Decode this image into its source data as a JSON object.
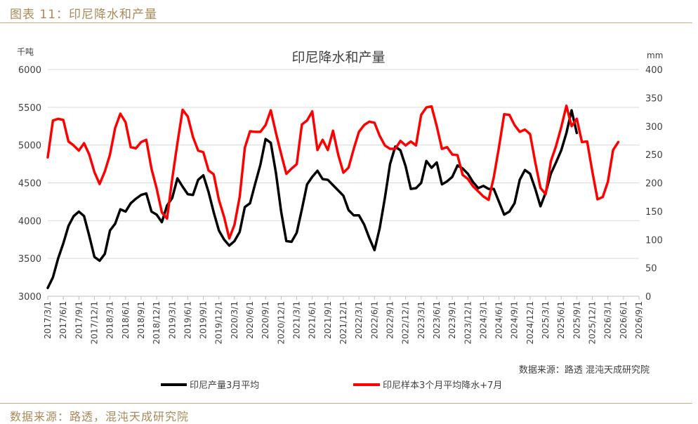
{
  "figure": {
    "title": "图表 11：印尼降水和产量",
    "source": "数据来源：路透，混沌天成研究院"
  },
  "chart_data": {
    "type": "line",
    "title": "印尼降水和产量",
    "left_axis_unit": "千吨",
    "right_axis_unit": "mm",
    "source_note": "数据来源：路透   混沌天成研究院",
    "x_start": "2017/3/1",
    "x_labels": [
      "2017/3/1",
      "2017/6/1",
      "2017/9/1",
      "2017/12/1",
      "2018/3/1",
      "2018/6/1",
      "2018/9/1",
      "2018/12/1",
      "2019/3/1",
      "2019/6/1",
      "2019/9/1",
      "2019/12/1",
      "2020/3/1",
      "2020/6/1",
      "2020/9/1",
      "2020/12/1",
      "2021/3/1",
      "2021/6/1",
      "2021/9/1",
      "2021/12/1",
      "2022/3/1",
      "2022/6/1",
      "2022/9/1",
      "2022/12/1",
      "2023/3/1",
      "2023/6/1",
      "2023/9/1",
      "2023/12/1",
      "2024/3/1",
      "2024/6/1",
      "2024/9/1",
      "2024/12/1",
      "2025/3/1",
      "2025/6/1",
      "2025/9/1",
      "2025/12/1",
      "2026/3/1",
      "2026/6/1",
      "2026/9/1"
    ],
    "ylim_left": [
      3000,
      6000
    ],
    "yticks_left": [
      3000,
      3500,
      4000,
      4500,
      5000,
      5500,
      6000
    ],
    "ylim_right": [
      0,
      400
    ],
    "yticks_right": [
      0,
      50,
      100,
      150,
      200,
      250,
      300,
      350,
      400
    ],
    "legend": [
      "印尼产量3月平均",
      "印尼样本3个月平均降水+7月"
    ],
    "series": [
      {
        "name": "印尼产量3月平均",
        "axis": "left",
        "color": "#000000",
        "start_month_index": 0,
        "values": [
          3110,
          3250,
          3500,
          3700,
          3930,
          4060,
          4120,
          4060,
          3800,
          3520,
          3470,
          3560,
          3870,
          3960,
          4150,
          4120,
          4230,
          4290,
          4340,
          4360,
          4120,
          4080,
          3980,
          4200,
          4300,
          4560,
          4450,
          4350,
          4340,
          4540,
          4600,
          4380,
          4110,
          3870,
          3750,
          3670,
          3730,
          3850,
          4180,
          4230,
          4490,
          4740,
          5080,
          5030,
          4630,
          4120,
          3730,
          3720,
          3840,
          4150,
          4480,
          4580,
          4660,
          4550,
          4540,
          4470,
          4400,
          4330,
          4140,
          4070,
          4070,
          3950,
          3770,
          3610,
          3900,
          4300,
          4750,
          4980,
          4930,
          4720,
          4420,
          4430,
          4500,
          4790,
          4700,
          4770,
          4480,
          4520,
          4580,
          4730,
          4690,
          4620,
          4510,
          4430,
          4460,
          4420,
          4420,
          4250,
          4080,
          4120,
          4230,
          4540,
          4670,
          4620,
          4420,
          4190,
          4370,
          4620,
          4770,
          4930,
          5160,
          5460,
          5160
        ]
      },
      {
        "name": "印尼样本3个月平均降水+7月",
        "axis": "right",
        "color": "#ff0000",
        "start_month_index": 0,
        "values": [
          245,
          310,
          313,
          311,
          273,
          266,
          257,
          270,
          250,
          219,
          198,
          220,
          250,
          297,
          322,
          307,
          263,
          261,
          272,
          276,
          225,
          190,
          148,
          137,
          207,
          270,
          329,
          317,
          281,
          257,
          254,
          222,
          215,
          170,
          140,
          102,
          126,
          175,
          262,
          291,
          290,
          290,
          302,
          328,
          288,
          251,
          216,
          225,
          233,
          303,
          310,
          326,
          258,
          276,
          258,
          292,
          250,
          218,
          227,
          260,
          290,
          302,
          308,
          306,
          283,
          266,
          260,
          260,
          274,
          266,
          273,
          266,
          320,
          333,
          335,
          300,
          260,
          263,
          250,
          249,
          214,
          207,
          194,
          185,
          176,
          170,
          210,
          263,
          321,
          320,
          302,
          290,
          294,
          286,
          236,
          191,
          180,
          238,
          265,
          298,
          336,
          300,
          313,
          272,
          273,
          220,
          171,
          175,
          202,
          258,
          272
        ]
      }
    ]
  }
}
